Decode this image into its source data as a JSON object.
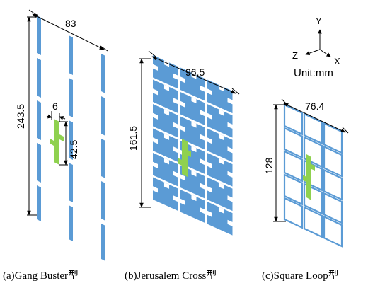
{
  "colors": {
    "element": "#5b9bd5",
    "highlight": "#8fd14f",
    "line": "#000000",
    "background": "#ffffff"
  },
  "panel_a": {
    "width_dim": "83",
    "height_dim": "243.5",
    "gap_dim": "6",
    "element_dim": "42.5",
    "caption": "(a)Gang Buster型"
  },
  "panel_b": {
    "width_dim": "96.5",
    "height_dim": "161.5",
    "caption": "(b)Jerusalem Cross型"
  },
  "panel_c": {
    "width_dim": "76.4",
    "height_dim": "128",
    "caption": "(c)Square Loop型"
  },
  "axes": {
    "y": "Y",
    "z": "Z",
    "x": "X",
    "unit": "Unit:mm"
  }
}
